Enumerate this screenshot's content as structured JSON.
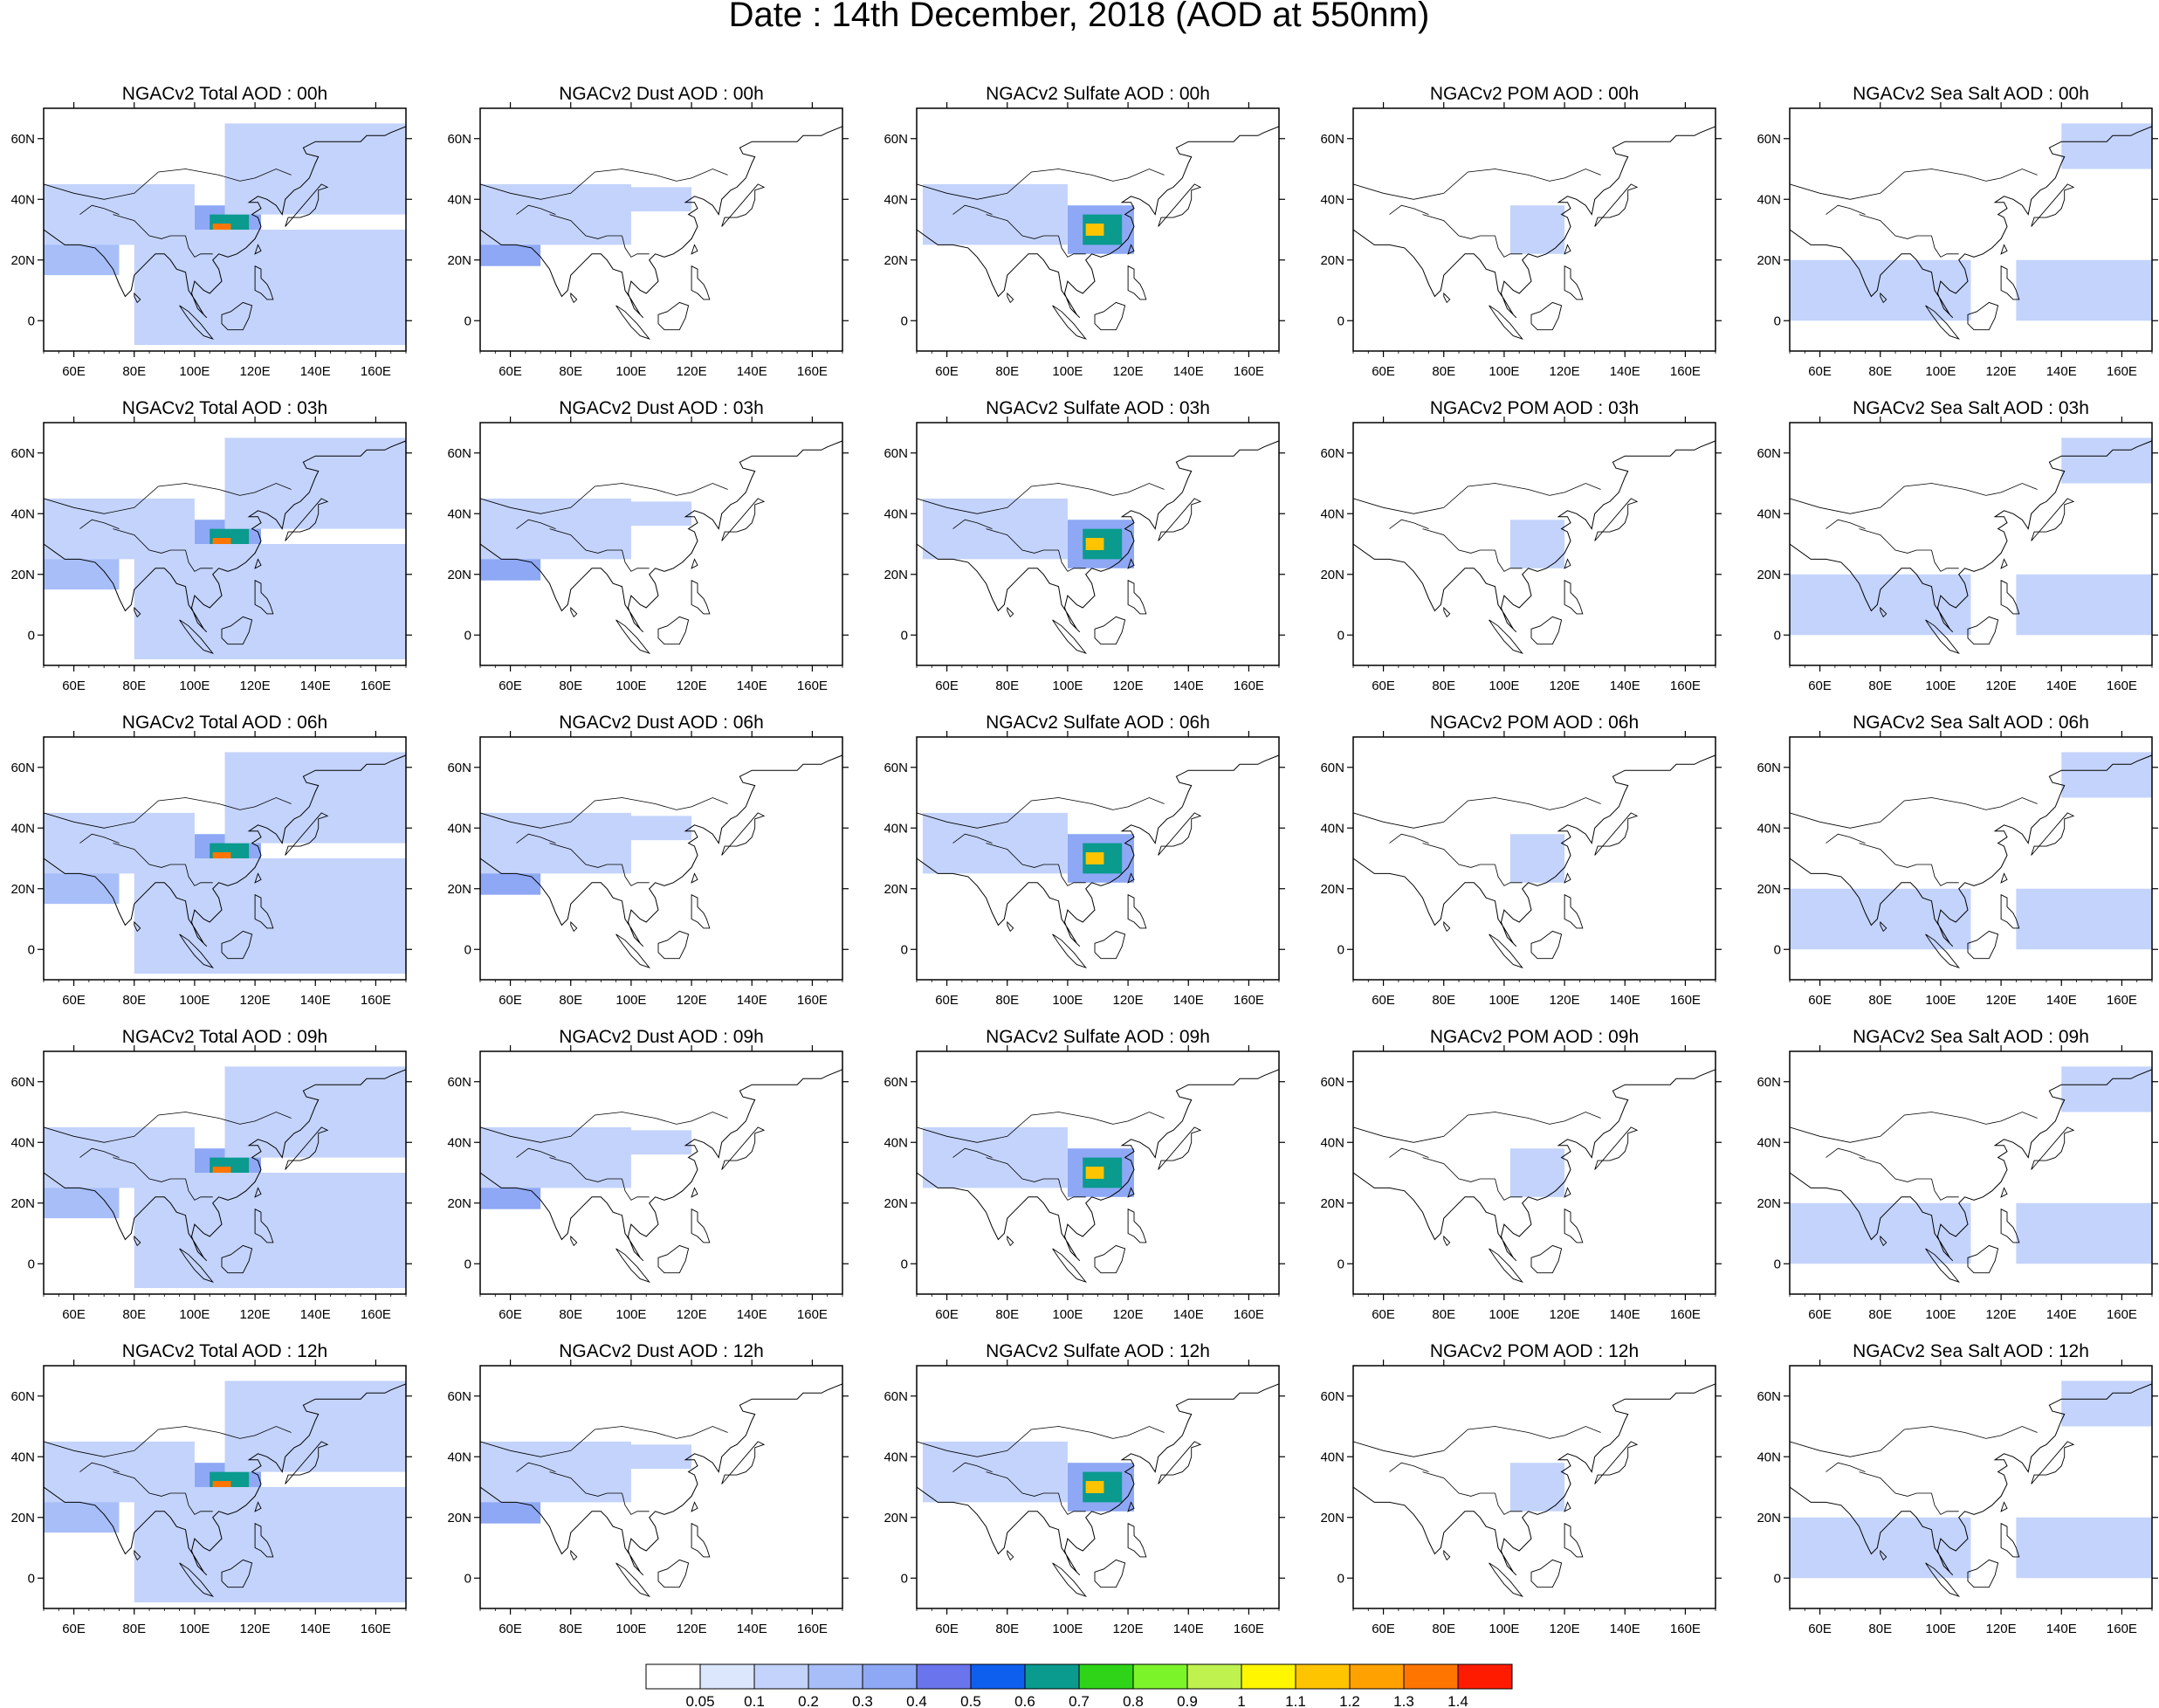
{
  "figure": {
    "title": "Date : 14th December, 2018 (AOD at 550nm)"
  },
  "axes": {
    "lon_ticks": [
      "60E",
      "80E",
      "100E",
      "120E",
      "140E",
      "160E"
    ],
    "lat_ticks": [
      "60N",
      "40N",
      "20N",
      "0"
    ],
    "lon_range": [
      50,
      170
    ],
    "lat_range": [
      -10,
      70
    ]
  },
  "panels": [
    {
      "row": 0,
      "col": 0,
      "species": "total",
      "hour": "00h",
      "title": "NGACv2 Total AOD : 00h"
    },
    {
      "row": 0,
      "col": 1,
      "species": "dust",
      "hour": "00h",
      "title": "NGACv2 Dust AOD : 00h"
    },
    {
      "row": 0,
      "col": 2,
      "species": "sulfate",
      "hour": "00h",
      "title": "NGACv2 Sulfate AOD : 00h"
    },
    {
      "row": 0,
      "col": 3,
      "species": "pom",
      "hour": "00h",
      "title": "NGACv2 POM AOD : 00h"
    },
    {
      "row": 0,
      "col": 4,
      "species": "seasalt",
      "hour": "00h",
      "title": "NGACv2 Sea Salt AOD : 00h"
    },
    {
      "row": 1,
      "col": 0,
      "species": "total",
      "hour": "03h",
      "title": "NGACv2 Total AOD : 03h"
    },
    {
      "row": 1,
      "col": 1,
      "species": "dust",
      "hour": "03h",
      "title": "NGACv2 Dust AOD : 03h"
    },
    {
      "row": 1,
      "col": 2,
      "species": "sulfate",
      "hour": "03h",
      "title": "NGACv2 Sulfate AOD : 03h"
    },
    {
      "row": 1,
      "col": 3,
      "species": "pom",
      "hour": "03h",
      "title": "NGACv2 POM AOD : 03h"
    },
    {
      "row": 1,
      "col": 4,
      "species": "seasalt",
      "hour": "03h",
      "title": "NGACv2 Sea Salt AOD : 03h"
    },
    {
      "row": 2,
      "col": 0,
      "species": "total",
      "hour": "06h",
      "title": "NGACv2 Total AOD : 06h"
    },
    {
      "row": 2,
      "col": 1,
      "species": "dust",
      "hour": "06h",
      "title": "NGACv2 Dust AOD : 06h"
    },
    {
      "row": 2,
      "col": 2,
      "species": "sulfate",
      "hour": "06h",
      "title": "NGACv2 Sulfate AOD : 06h"
    },
    {
      "row": 2,
      "col": 3,
      "species": "pom",
      "hour": "06h",
      "title": "NGACv2 POM AOD : 06h"
    },
    {
      "row": 2,
      "col": 4,
      "species": "seasalt",
      "hour": "06h",
      "title": "NGACv2 Sea Salt AOD : 06h"
    },
    {
      "row": 3,
      "col": 0,
      "species": "total",
      "hour": "09h",
      "title": "NGACv2 Total AOD : 09h"
    },
    {
      "row": 3,
      "col": 1,
      "species": "dust",
      "hour": "09h",
      "title": "NGACv2 Dust AOD : 09h"
    },
    {
      "row": 3,
      "col": 2,
      "species": "sulfate",
      "hour": "09h",
      "title": "NGACv2 Sulfate AOD : 09h"
    },
    {
      "row": 3,
      "col": 3,
      "species": "pom",
      "hour": "09h",
      "title": "NGACv2 POM AOD : 09h"
    },
    {
      "row": 3,
      "col": 4,
      "species": "seasalt",
      "hour": "09h",
      "title": "NGACv2 Sea Salt  AOD : 09h"
    },
    {
      "row": 4,
      "col": 0,
      "species": "total",
      "hour": "12h",
      "title": "NGACv2 Total AOD  : 12h"
    },
    {
      "row": 4,
      "col": 1,
      "species": "dust",
      "hour": "12h",
      "title": "NGACv2 Dust AOD : 12h"
    },
    {
      "row": 4,
      "col": 2,
      "species": "sulfate",
      "hour": "12h",
      "title": "NGACv2 Sulfate AOD : 12h"
    },
    {
      "row": 4,
      "col": 3,
      "species": "pom",
      "hour": "12h",
      "title": "NGACv2 POM  AOD : 12h"
    },
    {
      "row": 4,
      "col": 4,
      "species": "seasalt",
      "hour": "12h",
      "title": "NGACv2 Sea Salt  AOD : 12h"
    }
  ],
  "colorbar": {
    "labels": [
      "0.05",
      "0.1",
      "0.2",
      "0.3",
      "0.4",
      "0.5",
      "0.6",
      "0.7",
      "0.8",
      "0.9",
      "1",
      "1.1",
      "1.2",
      "1.3",
      "1.4"
    ],
    "colors": [
      "#ffffff",
      "#dce6fd",
      "#c3d3fb",
      "#a7bef8",
      "#8ea8f5",
      "#6a74ec",
      "#0f5fef",
      "#0a9a8e",
      "#2fd419",
      "#7cf42a",
      "#bff24f",
      "#fff600",
      "#ffc400",
      "#ffa100",
      "#ff7500",
      "#ff1b00"
    ]
  },
  "chart_data": {
    "type": "heatmap",
    "title": "Date : 14th December, 2018 (AOD at 550nm)",
    "x_ticks": [
      "60E",
      "80E",
      "100E",
      "120E",
      "140E",
      "160E"
    ],
    "y_ticks": [
      "60N",
      "40N",
      "20N",
      "0"
    ],
    "xlim": [
      50,
      170
    ],
    "ylim": [
      -10,
      70
    ],
    "colorbar_levels": [
      0.05,
      0.1,
      0.2,
      0.3,
      0.4,
      0.5,
      0.6,
      0.7,
      0.8,
      0.9,
      1,
      1.1,
      1.2,
      1.3,
      1.4
    ],
    "species": {
      "total": {
        "regions": [
          {
            "lon": [
              100,
              122
            ],
            "lat": [
              22,
              38
            ],
            "level": 0.3
          },
          {
            "lon": [
              105,
              118
            ],
            "lat": [
              25,
              35
            ],
            "level": 0.6
          },
          {
            "lon": [
              106,
              112
            ],
            "lat": [
              28,
              32
            ],
            "level": 1.3
          },
          {
            "lon": [
              50,
              75
            ],
            "lat": [
              15,
              30
            ],
            "level": 0.2
          },
          {
            "lon": [
              50,
              100
            ],
            "lat": [
              25,
              45
            ],
            "level": 0.1
          },
          {
            "lon": [
              80,
              170
            ],
            "lat": [
              -8,
              30
            ],
            "level": 0.1
          },
          {
            "lon": [
              110,
              170
            ],
            "lat": [
              35,
              65
            ],
            "level": 0.1
          }
        ]
      },
      "dust": {
        "regions": [
          {
            "lon": [
              50,
              70
            ],
            "lat": [
              18,
              30
            ],
            "level": 0.3
          },
          {
            "lon": [
              50,
              100
            ],
            "lat": [
              25,
              45
            ],
            "level": 0.1
          },
          {
            "lon": [
              60,
              120
            ],
            "lat": [
              36,
              44
            ],
            "level": 0.1
          }
        ]
      },
      "sulfate": {
        "regions": [
          {
            "lon": [
              100,
              122
            ],
            "lat": [
              22,
              38
            ],
            "level": 0.3
          },
          {
            "lon": [
              105,
              118
            ],
            "lat": [
              25,
              35
            ],
            "level": 0.6
          },
          {
            "lon": [
              106,
              112
            ],
            "lat": [
              28,
              32
            ],
            "level": 1.1
          },
          {
            "lon": [
              52,
              100
            ],
            "lat": [
              25,
              45
            ],
            "level": 0.1
          }
        ]
      },
      "pom": {
        "regions": [
          {
            "lon": [
              102,
              120
            ],
            "lat": [
              22,
              38
            ],
            "level": 0.1
          }
        ]
      },
      "seasalt": {
        "regions": [
          {
            "lon": [
              125,
              170
            ],
            "lat": [
              0,
              20
            ],
            "level": 0.1
          },
          {
            "lon": [
              50,
              110
            ],
            "lat": [
              0,
              20
            ],
            "level": 0.1
          },
          {
            "lon": [
              140,
              170
            ],
            "lat": [
              50,
              65
            ],
            "level": 0.1
          }
        ]
      }
    }
  }
}
